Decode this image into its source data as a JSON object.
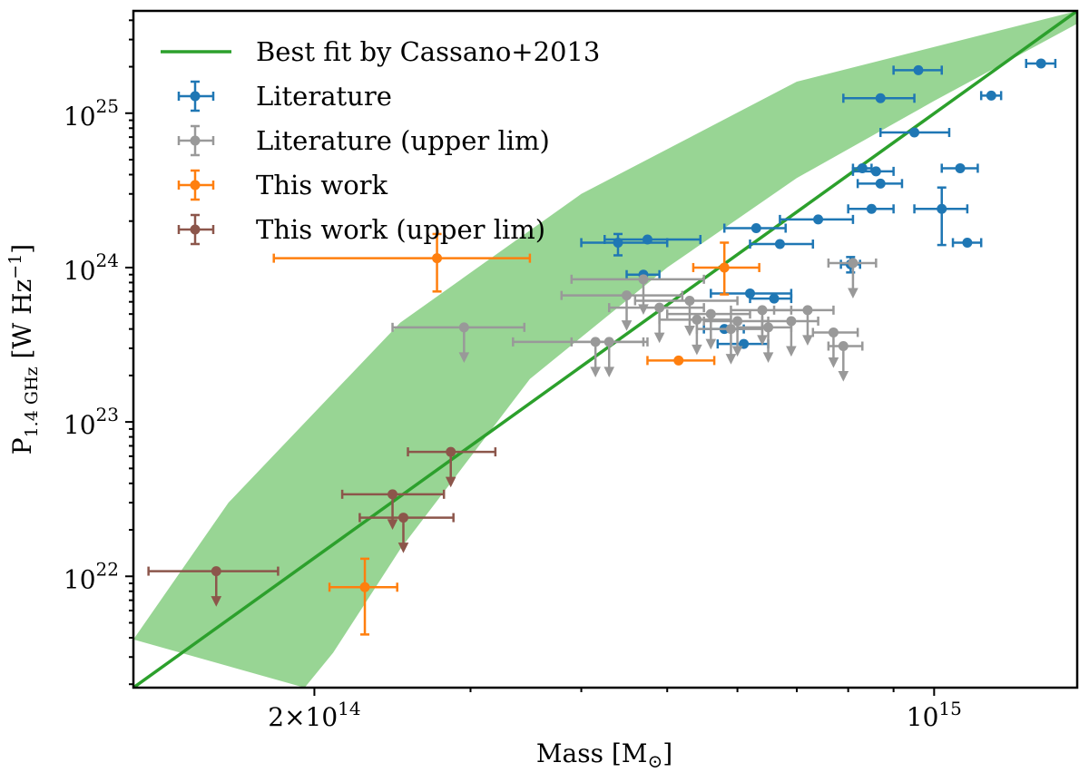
{
  "chart_data": {
    "type": "scatter",
    "title": "",
    "xlabel": "Mass [M",
    "xlabel_sub": "⊙",
    "xlabel_end": "]",
    "ylabel": "P",
    "ylabel_sub": "1.4 GHz",
    "ylabel_unit": " [W Hz",
    "ylabel_unit_sup": "−1",
    "ylabel_end": "]",
    "xscale": "log",
    "yscale": "log",
    "xlim": [
      125000000000000.0,
      1450000000000000.0
    ],
    "ylim": [
      1.9e+21,
      4.6e+25
    ],
    "grid": false,
    "legend_position": "top-left",
    "x_ticks": [
      {
        "value": 200000000000000.0,
        "base": "2×10",
        "exp": "14"
      },
      {
        "value": 1000000000000000.0,
        "base": "10",
        "exp": "15"
      }
    ],
    "y_ticks": [
      {
        "value": 1e+22,
        "base": "10",
        "exp": "22"
      },
      {
        "value": 1e+23,
        "base": "10",
        "exp": "23"
      },
      {
        "value": 1e+24,
        "base": "10",
        "exp": "24"
      },
      {
        "value": 1e+25,
        "base": "10",
        "exp": "25"
      }
    ],
    "fit": {
      "name": "Best fit by Cassano+2013",
      "color": "#2ca02c",
      "band_color": "#98d594",
      "points": [
        [
          125000000000000.0,
          1.9e+21
        ],
        [
          1450000000000000.0,
          4.6e+25
        ]
      ],
      "band_upper": [
        [
          125000000000000.0,
          3.9e+21
        ],
        [
          160000000000000.0,
          3e+22
        ],
        [
          250000000000000.0,
          4.4e+23
        ],
        [
          400000000000000.0,
          3e+24
        ],
        [
          700000000000000.0,
          1.6e+25
        ],
        [
          1450000000000000.0,
          4.6e+25
        ]
      ],
      "band_lower": [
        [
          1450000000000000.0,
          3.8e+25
        ],
        [
          1000000000000000.0,
          1.2e+25
        ],
        [
          700000000000000.0,
          3.8e+24
        ],
        [
          500000000000000.0,
          1e+24
        ],
        [
          350000000000000.0,
          1.9e+23
        ],
        [
          250000000000000.0,
          1.5e+22
        ],
        [
          210000000000000.0,
          3.2e+21
        ],
        [
          195000000000000.0,
          1.9e+21
        ]
      ]
    },
    "series": [
      {
        "name": "Literature",
        "color": "#1f77b4",
        "upper_limit": false,
        "points": [
          {
            "x": 1320000000000000.0,
            "y": 2.1e+25,
            "xerr": [
              50000000000000.0,
              50000000000000.0
            ],
            "yerr": [
              0,
              0
            ]
          },
          {
            "x": 960000000000000.0,
            "y": 1.9e+25,
            "xerr": [
              60000000000000.0,
              60000000000000.0
            ],
            "yerr": [
              0,
              0
            ]
          },
          {
            "x": 1160000000000000.0,
            "y": 1.3e+25,
            "xerr": [
              30000000000000.0,
              30000000000000.0
            ],
            "yerr": [
              0,
              0
            ]
          },
          {
            "x": 870000000000000.0,
            "y": 1.25e+25,
            "xerr": [
              80000000000000.0,
              80000000000000.0
            ],
            "yerr": [
              0,
              0
            ]
          },
          {
            "x": 950000000000000.0,
            "y": 7.5e+24,
            "xerr": [
              80000000000000.0,
              90000000000000.0
            ],
            "yerr": [
              0,
              0
            ]
          },
          {
            "x": 830000000000000.0,
            "y": 4.4e+24,
            "xerr": [
              20000000000000.0,
              20000000000000.0
            ],
            "yerr": [
              0,
              0
            ]
          },
          {
            "x": 860000000000000.0,
            "y": 4.2e+24,
            "xerr": [
              50000000000000.0,
              40000000000000.0
            ],
            "yerr": [
              0,
              0
            ]
          },
          {
            "x": 1070000000000000.0,
            "y": 4.4e+24,
            "xerr": [
              50000000000000.0,
              50000000000000.0
            ],
            "yerr": [
              0,
              0
            ]
          },
          {
            "x": 870000000000000.0,
            "y": 3.5e+24,
            "xerr": [
              50000000000000.0,
              50000000000000.0
            ],
            "yerr": [
              0,
              0
            ]
          },
          {
            "x": 850000000000000.0,
            "y": 2.4e+24,
            "xerr": [
              50000000000000.0,
              50000000000000.0
            ],
            "yerr": [
              0,
              0
            ]
          },
          {
            "x": 740000000000000.0,
            "y": 2.05e+24,
            "xerr": [
              70000000000000.0,
              70000000000000.0
            ],
            "yerr": [
              0,
              0
            ]
          },
          {
            "x": 1020000000000000.0,
            "y": 2.4e+24,
            "xerr": [
              70000000000000.0,
              70000000000000.0
            ],
            "yerr": [
              1e+24,
              9e+23
            ]
          },
          {
            "x": 630000000000000.0,
            "y": 1.8e+24,
            "xerr": [
              50000000000000.0,
              50000000000000.0
            ],
            "yerr": [
              0,
              0
            ]
          },
          {
            "x": 670000000000000.0,
            "y": 1.42e+24,
            "xerr": [
              50000000000000.0,
              60000000000000.0
            ],
            "yerr": [
              0,
              0
            ]
          },
          {
            "x": 1090000000000000.0,
            "y": 1.45e+24,
            "xerr": [
              40000000000000.0,
              40000000000000.0
            ],
            "yerr": [
              0,
              0
            ]
          },
          {
            "x": 440000000000000.0,
            "y": 1.45e+24,
            "xerr": [
              40000000000000.0,
              60000000000000.0
            ],
            "yerr": [
              2.5e+23,
              2e+23
            ]
          },
          {
            "x": 475000000000000.0,
            "y": 1.52e+24,
            "xerr": [
              50000000000000.0,
              70000000000000.0
            ],
            "yerr": [
              0,
              0
            ]
          },
          {
            "x": 805000000000000.0,
            "y": 1.05e+24,
            "xerr": [
              20000000000000.0,
              20000000000000.0
            ],
            "yerr": [
              1.2e+23,
              1.2e+23
            ]
          },
          {
            "x": 470000000000000.0,
            "y": 9e+23,
            "xerr": [
              20000000000000.0,
              20000000000000.0
            ],
            "yerr": [
              0,
              0
            ]
          },
          {
            "x": 620000000000000.0,
            "y": 6.8e+23,
            "xerr": [
              60000000000000.0,
              70000000000000.0
            ],
            "yerr": [
              0,
              0
            ]
          },
          {
            "x": 660000000000000.0,
            "y": 6.3e+23,
            "xerr": [
              40000000000000.0,
              30000000000000.0
            ],
            "yerr": [
              0,
              0
            ]
          },
          {
            "x": 580000000000000.0,
            "y": 4e+23,
            "xerr": [
              30000000000000.0,
              30000000000000.0
            ],
            "yerr": [
              0,
              0
            ]
          },
          {
            "x": 610000000000000.0,
            "y": 3.2e+23,
            "xerr": [
              40000000000000.0,
              40000000000000.0
            ],
            "yerr": [
              0,
              0
            ]
          }
        ]
      },
      {
        "name": "Literature (upper lim)",
        "color": "#999999",
        "upper_limit": true,
        "points": [
          {
            "x": 810000000000000.0,
            "y": 1.07e+24,
            "xerr": [
              50000000000000.0,
              50000000000000.0
            ]
          },
          {
            "x": 470000000000000.0,
            "y": 8.4e+23,
            "xerr": [
              80000000000000.0,
              80000000000000.0
            ]
          },
          {
            "x": 450000000000000.0,
            "y": 6.6e+23,
            "xerr": [
              70000000000000.0,
              70000000000000.0
            ]
          },
          {
            "x": 530000000000000.0,
            "y": 6.1e+23,
            "xerr": [
              70000000000000.0,
              70000000000000.0
            ]
          },
          {
            "x": 490000000000000.0,
            "y": 5.5e+23,
            "xerr": [
              60000000000000.0,
              60000000000000.0
            ]
          },
          {
            "x": 560000000000000.0,
            "y": 5e+23,
            "xerr": [
              60000000000000.0,
              60000000000000.0
            ]
          },
          {
            "x": 640000000000000.0,
            "y": 5.3e+23,
            "xerr": [
              50000000000000.0,
              50000000000000.0
            ]
          },
          {
            "x": 720000000000000.0,
            "y": 5.3e+23,
            "xerr": [
              60000000000000.0,
              50000000000000.0
            ]
          },
          {
            "x": 540000000000000.0,
            "y": 4.6e+23,
            "xerr": [
              50000000000000.0,
              50000000000000.0
            ]
          },
          {
            "x": 600000000000000.0,
            "y": 4.5e+23,
            "xerr": [
              50000000000000.0,
              50000000000000.0
            ]
          },
          {
            "x": 690000000000000.0,
            "y": 4.5e+23,
            "xerr": [
              50000000000000.0,
              50000000000000.0
            ]
          },
          {
            "x": 590000000000000.0,
            "y": 4e+23,
            "xerr": [
              50000000000000.0,
              50000000000000.0
            ]
          },
          {
            "x": 650000000000000.0,
            "y": 4.1e+23,
            "xerr": [
              50000000000000.0,
              40000000000000.0
            ]
          },
          {
            "x": 770000000000000.0,
            "y": 3.8e+23,
            "xerr": [
              40000000000000.0,
              50000000000000.0
            ]
          },
          {
            "x": 295000000000000.0,
            "y": 4.1e+23,
            "xerr": [
              50000000000000.0,
              50000000000000.0
            ]
          },
          {
            "x": 415000000000000.0,
            "y": 3.3e+23,
            "xerr": [
              80000000000000.0,
              60000000000000.0
            ]
          },
          {
            "x": 430000000000000.0,
            "y": 3.3e+23,
            "xerr": [
              40000000000000.0,
              40000000000000.0
            ]
          },
          {
            "x": 790000000000000.0,
            "y": 3.1e+23,
            "xerr": [
              30000000000000.0,
              40000000000000.0
            ]
          }
        ]
      },
      {
        "name": "This work",
        "color": "#ff7f0e",
        "upper_limit": false,
        "points": [
          {
            "x": 275000000000000.0,
            "y": 1.15e+24,
            "xerr": [
              95000000000000.0,
              75000000000000.0
            ],
            "yerr": [
              4.5e+23,
              5e+23
            ]
          },
          {
            "x": 580000000000000.0,
            "y": 1e+24,
            "xerr": [
              45000000000000.0,
              55000000000000.0
            ],
            "yerr": [
              3.3e+23,
              4.5e+23
            ]
          },
          {
            "x": 515000000000000.0,
            "y": 2.5e+23,
            "xerr": [
              40000000000000.0,
              50000000000000.0
            ],
            "yerr": [
              2e+21,
              2e+21
            ]
          },
          {
            "x": 228000000000000.0,
            "y": 8.5e+21,
            "xerr": [
              20000000000000.0,
              20000000000000.0
            ],
            "yerr": [
              4.3e+21,
              4.5e+21
            ]
          }
        ]
      },
      {
        "name": "This work (upper lim)",
        "color": "#8c564b",
        "upper_limit": true,
        "points": [
          {
            "x": 285000000000000.0,
            "y": 6.4e+22,
            "xerr": [
              30000000000000.0,
              35000000000000.0
            ]
          },
          {
            "x": 245000000000000.0,
            "y": 3.4e+22,
            "xerr": [
              30000000000000.0,
              35000000000000.0
            ]
          },
          {
            "x": 252000000000000.0,
            "y": 2.4e+22,
            "xerr": [
              27000000000000.0,
              35000000000000.0
            ]
          },
          {
            "x": 155000000000000.0,
            "y": 1.08e+22,
            "xerr": [
              25000000000000.0,
              27000000000000.0
            ]
          }
        ]
      }
    ]
  }
}
